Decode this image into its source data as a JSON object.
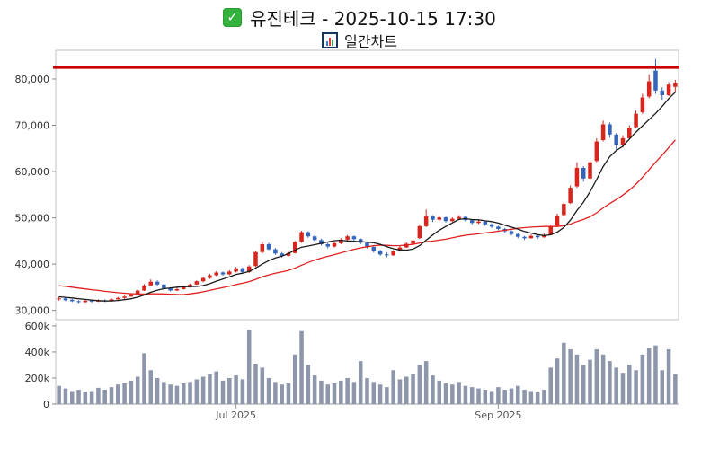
{
  "header": {
    "title": "유진테크 - 2025-10-15 17:30",
    "subtitle": "일간차트"
  },
  "icons": {
    "check": "✓",
    "chart_icon_name": "bar-chart-icon"
  },
  "chart_data": {
    "type": "candlestick",
    "title": "유진테크 - 2025-10-15 17:30",
    "subtitle": "일간차트",
    "legend_position": "none",
    "grid": false,
    "price_axis": {
      "range": [
        28000,
        86200
      ],
      "ticks": [
        {
          "v": 30000,
          "label": "30,000"
        },
        {
          "v": 40000,
          "label": "40,000"
        },
        {
          "v": 50000,
          "label": "50,000"
        },
        {
          "v": 60000,
          "label": "60,000"
        },
        {
          "v": 70000,
          "label": "70,000"
        },
        {
          "v": 80000,
          "label": "80,000"
        }
      ]
    },
    "volume_axis": {
      "range": [
        0,
        620000
      ],
      "ticks": [
        {
          "v": 0,
          "label": "0"
        },
        {
          "v": 200000,
          "label": "200k"
        },
        {
          "v": 400000,
          "label": "400k"
        },
        {
          "v": 600000,
          "label": "600k"
        }
      ]
    },
    "x_ticks": [
      {
        "index": 27,
        "label": "Jul 2025"
      },
      {
        "index": 67,
        "label": "Sep 2025"
      }
    ],
    "alarm_line": {
      "value": 82500,
      "color": "#cc0000",
      "width": 3
    },
    "ma_short": {
      "window": 7,
      "seed": 33000,
      "color": "#1a1a1a"
    },
    "ma_long": {
      "window": 20,
      "seed": 35500,
      "color": "#e02020"
    },
    "colors": {
      "up": "#d7261d",
      "down": "#3366bb",
      "volume": "#8d96ab",
      "axis_text": "#333333",
      "x_text": "#555555",
      "border": "#c0c0c0"
    },
    "candles": [
      [
        32400,
        32900,
        32100,
        32600
      ],
      [
        32600,
        32800,
        32000,
        32200
      ],
      [
        32300,
        32500,
        31800,
        32000
      ],
      [
        32000,
        32200,
        31600,
        31800
      ],
      [
        31800,
        32300,
        31700,
        32100
      ],
      [
        32100,
        32300,
        31700,
        31900
      ],
      [
        31900,
        32400,
        31800,
        32200
      ],
      [
        32200,
        32400,
        31800,
        32000
      ],
      [
        32000,
        32600,
        31900,
        32400
      ],
      [
        32400,
        32900,
        32300,
        32700
      ],
      [
        32700,
        33200,
        32500,
        33000
      ],
      [
        33000,
        33700,
        32900,
        33500
      ],
      [
        33500,
        34500,
        33400,
        34300
      ],
      [
        34300,
        35700,
        34200,
        35400
      ],
      [
        35400,
        36700,
        35200,
        36200
      ],
      [
        36200,
        36500,
        35300,
        35600
      ],
      [
        35600,
        35800,
        34600,
        34800
      ],
      [
        34800,
        35000,
        34100,
        34300
      ],
      [
        34300,
        34900,
        34200,
        34600
      ],
      [
        34600,
        35300,
        34500,
        35000
      ],
      [
        35000,
        35800,
        34900,
        35600
      ],
      [
        35600,
        36500,
        35500,
        36300
      ],
      [
        36300,
        37200,
        36100,
        37000
      ],
      [
        37000,
        37900,
        36800,
        37600
      ],
      [
        37600,
        38500,
        37400,
        38200
      ],
      [
        38200,
        38400,
        37500,
        37800
      ],
      [
        37800,
        38700,
        37600,
        38400
      ],
      [
        38400,
        39400,
        38200,
        39100
      ],
      [
        39100,
        39300,
        37900,
        38300
      ],
      [
        38300,
        39800,
        38100,
        39500
      ],
      [
        39600,
        42800,
        39400,
        42600
      ],
      [
        42600,
        44900,
        42300,
        44300
      ],
      [
        44300,
        44600,
        43000,
        43200
      ],
      [
        43200,
        43500,
        42000,
        42300
      ],
      [
        42300,
        42600,
        41400,
        41800
      ],
      [
        41800,
        42700,
        41600,
        42400
      ],
      [
        42400,
        45000,
        42300,
        44800
      ],
      [
        44800,
        47200,
        44600,
        46900
      ],
      [
        46900,
        47100,
        45700,
        46000
      ],
      [
        46000,
        46300,
        44900,
        45200
      ],
      [
        45200,
        45500,
        44000,
        44300
      ],
      [
        44300,
        44600,
        43400,
        43800
      ],
      [
        43800,
        44800,
        43600,
        44500
      ],
      [
        44500,
        45600,
        44300,
        45300
      ],
      [
        45300,
        46300,
        45100,
        46000
      ],
      [
        46000,
        46200,
        45100,
        45400
      ],
      [
        45400,
        45600,
        44300,
        44600
      ],
      [
        44600,
        44900,
        43400,
        43700
      ],
      [
        43700,
        44000,
        42500,
        42800
      ],
      [
        42800,
        43100,
        41800,
        42100
      ],
      [
        42100,
        42600,
        41500,
        41900
      ],
      [
        41900,
        43000,
        41800,
        42800
      ],
      [
        42800,
        43900,
        42700,
        43600
      ],
      [
        43600,
        44700,
        43500,
        44400
      ],
      [
        44400,
        45400,
        44300,
        45100
      ],
      [
        45600,
        48500,
        45500,
        48200
      ],
      [
        48200,
        51800,
        48000,
        50300
      ],
      [
        50300,
        50600,
        49100,
        49600
      ],
      [
        49600,
        50400,
        49300,
        50100
      ],
      [
        50100,
        50300,
        49000,
        49300
      ],
      [
        49300,
        50100,
        49100,
        49800
      ],
      [
        49800,
        50600,
        49600,
        50200
      ],
      [
        50200,
        50400,
        49200,
        49500
      ],
      [
        49500,
        49700,
        48600,
        48900
      ],
      [
        48900,
        49500,
        48700,
        49200
      ],
      [
        49200,
        49400,
        48300,
        48600
      ],
      [
        48600,
        48800,
        47800,
        48100
      ],
      [
        48100,
        48300,
        47300,
        47600
      ],
      [
        47600,
        47800,
        46800,
        47100
      ],
      [
        47100,
        47300,
        46200,
        46500
      ],
      [
        46500,
        46700,
        45600,
        45900
      ],
      [
        45900,
        46100,
        45200,
        45600
      ],
      [
        45600,
        46400,
        45500,
        46100
      ],
      [
        46100,
        46300,
        45400,
        45800
      ],
      [
        45800,
        46600,
        45700,
        46300
      ],
      [
        46300,
        48500,
        46200,
        48200
      ],
      [
        48300,
        50900,
        48200,
        50500
      ],
      [
        50600,
        53400,
        50400,
        53000
      ],
      [
        53200,
        57000,
        53000,
        56500
      ],
      [
        56800,
        62000,
        56500,
        60800
      ],
      [
        60800,
        61200,
        57800,
        58500
      ],
      [
        58500,
        62500,
        58200,
        62000
      ],
      [
        62300,
        67200,
        62000,
        66500
      ],
      [
        66800,
        71000,
        66500,
        70200
      ],
      [
        70200,
        70600,
        67300,
        68000
      ],
      [
        68000,
        68300,
        64500,
        65800
      ],
      [
        65800,
        67800,
        65200,
        67200
      ],
      [
        67200,
        70000,
        66900,
        69500
      ],
      [
        69600,
        73200,
        69400,
        72500
      ],
      [
        72800,
        76800,
        72500,
        76000
      ],
      [
        76200,
        81000,
        75800,
        79500
      ],
      [
        81800,
        84300,
        76800,
        77500
      ],
      [
        77500,
        78200,
        75500,
        76500
      ],
      [
        76500,
        79300,
        76300,
        78800
      ],
      [
        78300,
        79800,
        77200,
        79200
      ]
    ],
    "volumes": [
      140000,
      120000,
      100000,
      110000,
      95000,
      100000,
      125000,
      110000,
      130000,
      150000,
      160000,
      180000,
      210000,
      390000,
      260000,
      200000,
      170000,
      150000,
      140000,
      160000,
      170000,
      190000,
      210000,
      230000,
      250000,
      180000,
      200000,
      220000,
      190000,
      570000,
      310000,
      280000,
      200000,
      170000,
      150000,
      160000,
      380000,
      560000,
      300000,
      220000,
      180000,
      150000,
      160000,
      180000,
      200000,
      170000,
      330000,
      200000,
      170000,
      150000,
      130000,
      260000,
      190000,
      210000,
      230000,
      300000,
      330000,
      220000,
      180000,
      160000,
      150000,
      170000,
      140000,
      130000,
      120000,
      110000,
      100000,
      130000,
      110000,
      120000,
      140000,
      110000,
      100000,
      90000,
      110000,
      280000,
      350000,
      470000,
      420000,
      380000,
      300000,
      340000,
      420000,
      380000,
      330000,
      280000,
      240000,
      300000,
      260000,
      380000,
      430000,
      450000,
      260000,
      420000,
      230000
    ]
  }
}
